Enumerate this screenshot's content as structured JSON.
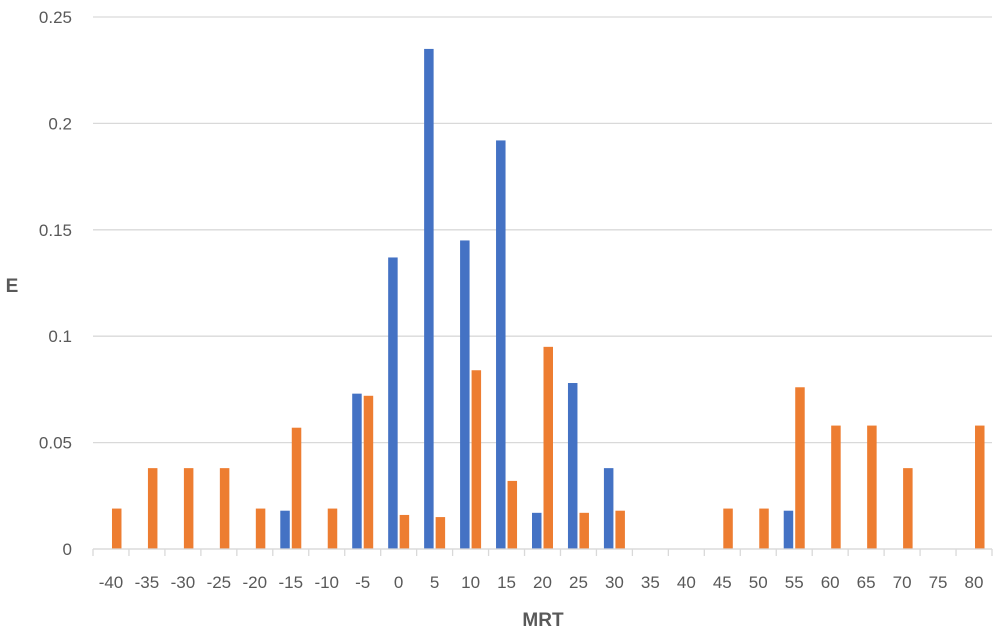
{
  "chart_data": {
    "type": "bar",
    "xlabel": "MRT",
    "ylabel": "E",
    "ylim": [
      0,
      0.25
    ],
    "yticks": [
      "0",
      "0.05",
      "0.1",
      "0.15",
      "0.2",
      "0.25"
    ],
    "grid": true,
    "legend": "none",
    "categories": [
      "-40",
      "-35",
      "-30",
      "-25",
      "-20",
      "-15",
      "-10",
      "-5",
      "0",
      "5",
      "10",
      "15",
      "20",
      "25",
      "30",
      "35",
      "40",
      "45",
      "50",
      "55",
      "60",
      "65",
      "70",
      "75",
      "80"
    ],
    "series": [
      {
        "color": "#4472C4",
        "values": [
          0,
          0,
          0,
          0,
          0,
          0.018,
          0,
          0.073,
          0.137,
          0.235,
          0.145,
          0.192,
          0.017,
          0.078,
          0.038,
          0,
          0,
          0,
          0,
          0.018,
          0,
          0,
          0,
          0,
          0
        ]
      },
      {
        "color": "#ED7D31",
        "values": [
          0.019,
          0.038,
          0.038,
          0.038,
          0.019,
          0.057,
          0.019,
          0.072,
          0.016,
          0.015,
          0.084,
          0.032,
          0.095,
          0.017,
          0.018,
          0,
          0,
          0.019,
          0.019,
          0.076,
          0.058,
          0.058,
          0.038,
          0,
          0.058
        ]
      }
    ]
  }
}
